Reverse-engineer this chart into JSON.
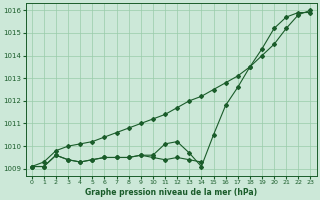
{
  "title": "Graphe pression niveau de la mer (hPa)",
  "bg_color": "#cce8d8",
  "grid_color": "#99ccaa",
  "line_color": "#1a5c2a",
  "ylim": [
    1008.7,
    1016.3
  ],
  "yticks": [
    1009,
    1010,
    1011,
    1012,
    1013,
    1014,
    1015,
    1016
  ],
  "xlim": [
    -0.5,
    23.5
  ],
  "series1_x": [
    0,
    1,
    2,
    3,
    4,
    5,
    6,
    7,
    8,
    9,
    10,
    11,
    12,
    13,
    14
  ],
  "series1_y": [
    1009.1,
    1009.1,
    1009.6,
    1009.4,
    1009.3,
    1009.4,
    1009.5,
    1009.5,
    1009.5,
    1009.6,
    1009.5,
    1009.4,
    1009.5,
    1009.4,
    1009.3
  ],
  "series2_x": [
    0,
    1,
    2,
    3,
    4,
    5,
    6,
    7,
    8,
    9,
    10,
    11,
    12,
    13,
    14,
    15,
    16,
    17,
    18,
    19,
    20,
    21,
    22,
    23
  ],
  "series2_y": [
    1009.1,
    1009.1,
    1009.6,
    1009.4,
    1009.3,
    1009.4,
    1009.5,
    1009.5,
    1009.5,
    1009.6,
    1009.6,
    1010.1,
    1010.2,
    1009.7,
    1009.1,
    1010.5,
    1011.8,
    1012.6,
    1013.5,
    1014.3,
    1015.2,
    1015.7,
    1015.9,
    1015.9
  ],
  "series3_x": [
    0,
    1,
    2,
    3,
    4,
    5,
    6,
    7,
    8,
    9,
    10,
    11,
    12,
    13,
    14,
    15,
    16,
    17,
    18,
    19,
    20,
    21,
    22,
    23
  ],
  "series3_y": [
    1009.1,
    1009.3,
    1009.8,
    1010.0,
    1010.1,
    1010.2,
    1010.4,
    1010.6,
    1010.8,
    1011.0,
    1011.2,
    1011.4,
    1011.7,
    1012.0,
    1012.2,
    1012.5,
    1012.8,
    1013.1,
    1013.5,
    1014.0,
    1014.5,
    1015.2,
    1015.8,
    1016.0
  ]
}
